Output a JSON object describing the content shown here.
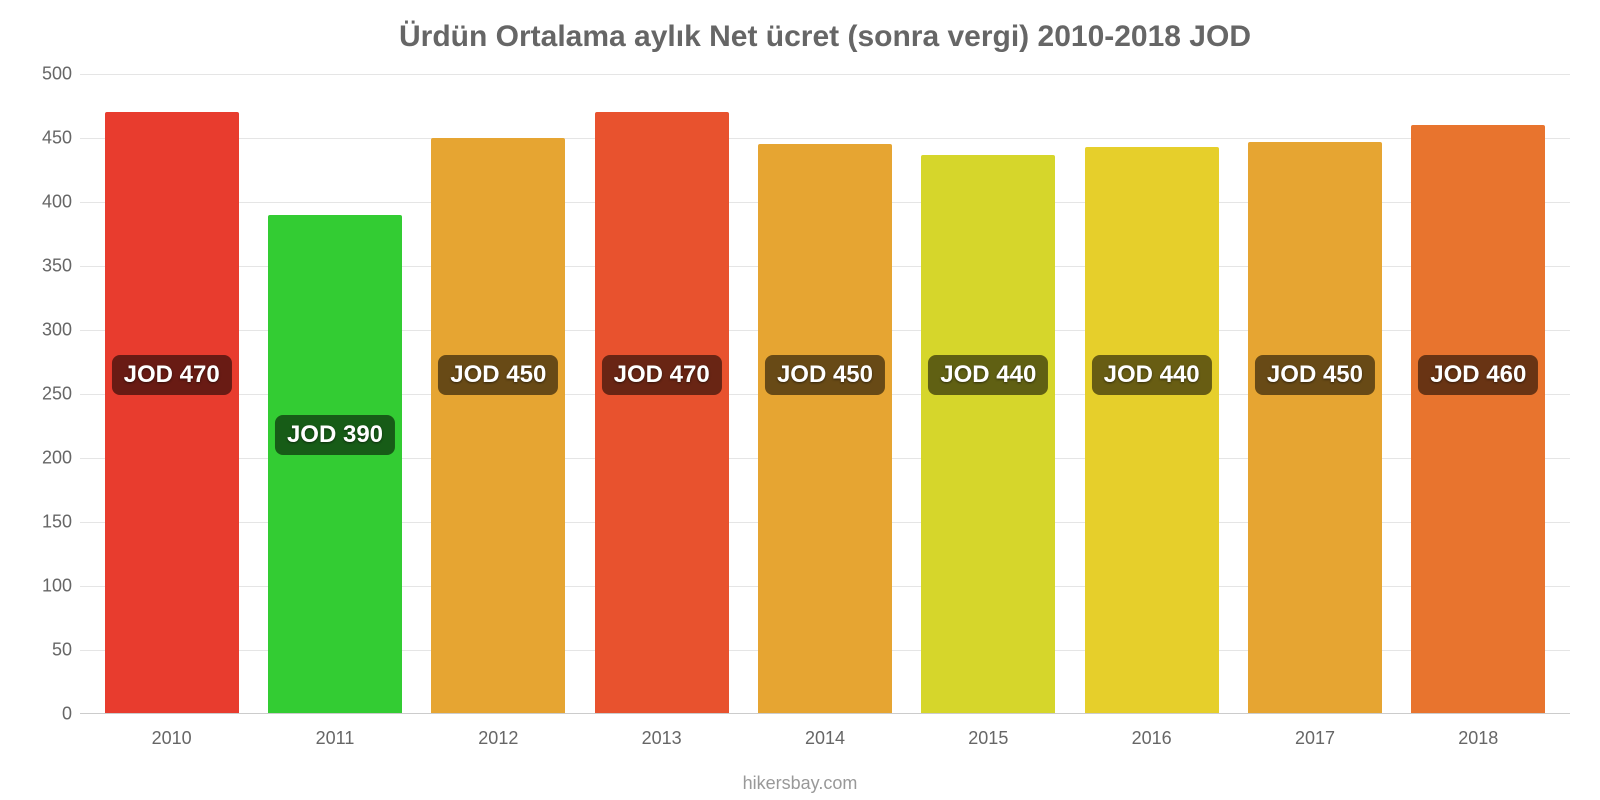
{
  "chart": {
    "type": "bar",
    "title": "Ürdün Ortalama aylık Net ücret (sonra vergi) 2010-2018 JOD",
    "title_fontsize": 30,
    "title_color": "#666666",
    "background_color": "#ffffff",
    "grid_color": "#e5e5e5",
    "axis_color": "#cccccc",
    "label_color": "#666666",
    "label_fontsize": 18,
    "bar_label_fontsize": 24,
    "bar_label_bg": "rgba(0,0,0,0.55)",
    "bar_label_color": "#ffffff",
    "bar_width_pct": 82,
    "ylim": [
      0,
      500
    ],
    "ytick_step": 50,
    "yticks": [
      0,
      50,
      100,
      150,
      200,
      250,
      300,
      350,
      400,
      450,
      500
    ],
    "categories": [
      "2010",
      "2011",
      "2012",
      "2013",
      "2014",
      "2015",
      "2016",
      "2017",
      "2018"
    ],
    "values": [
      470,
      390,
      450,
      470,
      445,
      437,
      443,
      447,
      460
    ],
    "display_labels": [
      "JOD 470",
      "JOD 390",
      "JOD 450",
      "JOD 470",
      "JOD 450",
      "JOD 440",
      "JOD 440",
      "JOD 450",
      "JOD 460"
    ],
    "bar_colors": [
      "#e83c2e",
      "#33cc33",
      "#e6a532",
      "#e8522e",
      "#e6a532",
      "#d6d62b",
      "#e6cf2b",
      "#e6a532",
      "#e8742e"
    ],
    "label_y_value": 265,
    "label_y_value_alt": {
      "1": 218
    },
    "source": "hikersbay.com"
  }
}
